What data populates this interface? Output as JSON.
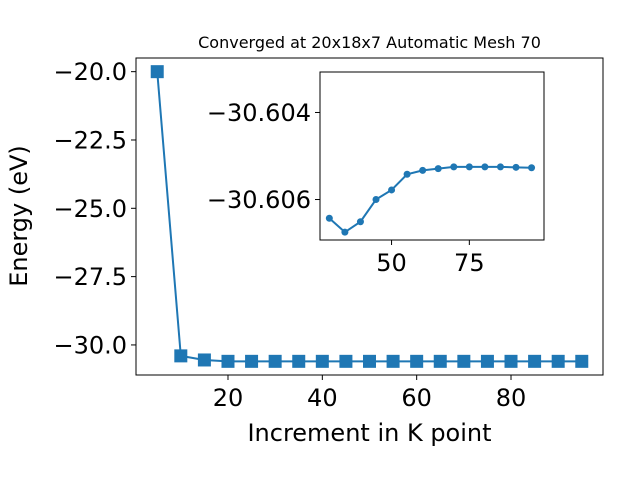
{
  "chart_data": [
    {
      "type": "line",
      "title": "Converged at 20x18x7 Automatic Mesh 70",
      "xlabel": "Increment in K point",
      "ylabel": "Energy (eV)",
      "xlim": [
        0.5,
        99.5
      ],
      "ylim": [
        -31.1,
        -19.5
      ],
      "xticks": [
        20,
        40,
        60,
        80
      ],
      "yticks": [
        -20.0,
        -22.5,
        -25.0,
        -27.5,
        -30.0
      ],
      "xtick_labels": [
        "20",
        "40",
        "60",
        "80"
      ],
      "ytick_labels": [
        "−20.0",
        "−22.5",
        "−25.0",
        "−27.5",
        "−30.0"
      ],
      "grid": false,
      "color": "#1f77b4",
      "marker": "square",
      "x": [
        5,
        10,
        15,
        20,
        25,
        30,
        35,
        40,
        45,
        50,
        55,
        60,
        65,
        70,
        75,
        80,
        85,
        90,
        95
      ],
      "y": [
        -20.0,
        -30.4,
        -30.55,
        -30.6,
        -30.6,
        -30.6,
        -30.6,
        -30.6,
        -30.6,
        -30.6,
        -30.6,
        -30.6,
        -30.6,
        -30.6,
        -30.6,
        -30.6,
        -30.6,
        -30.6,
        -30.6
      ]
    },
    {
      "type": "line",
      "title": "",
      "xlim": [
        27,
        99
      ],
      "ylim": [
        -30.60693,
        -30.60307
      ],
      "xticks": [
        50,
        75
      ],
      "yticks": [
        -30.606,
        -30.604
      ],
      "xtick_labels": [
        "50",
        "75"
      ],
      "ytick_labels": [
        "−30.606",
        "−30.604"
      ],
      "grid": false,
      "color": "#1f77b4",
      "marker": "circle",
      "x": [
        30,
        35,
        40,
        45,
        50,
        55,
        60,
        65,
        70,
        75,
        80,
        85,
        90,
        95
      ],
      "y": [
        -30.60643,
        -30.60675,
        -30.60651,
        -30.606,
        -30.60578,
        -30.60542,
        -30.60533,
        -30.60529,
        -30.60525,
        -30.60525,
        -30.60525,
        -30.60525,
        -30.60526,
        -30.60527
      ]
    }
  ]
}
